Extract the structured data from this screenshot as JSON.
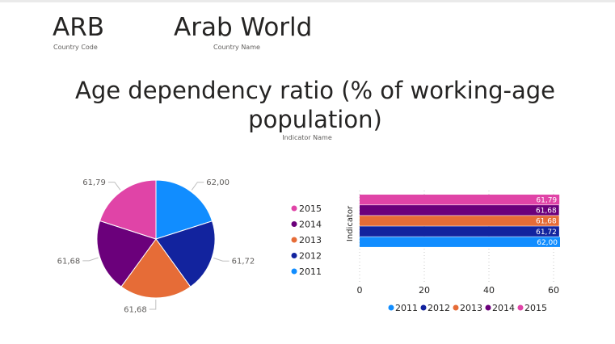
{
  "cards": {
    "country_code": {
      "value": "ARB",
      "label": "Country Code"
    },
    "country_name": {
      "value": "Arab World",
      "label": "Country Name"
    }
  },
  "indicator": {
    "value": "Age dependency ratio (% of working-age population)",
    "label": "Indicator Name"
  },
  "colors": {
    "2011": "#118DFF",
    "2012": "#12239E",
    "2013": "#E66C37",
    "2014": "#6B007B",
    "2015": "#E044A7"
  },
  "chart_data": [
    {
      "type": "pie",
      "categories": [
        "2011",
        "2012",
        "2013",
        "2014",
        "2015"
      ],
      "values": [
        62.0,
        61.72,
        61.68,
        61.68,
        61.79
      ],
      "data_labels": [
        "62,00",
        "61,72",
        "61,68",
        "61,68",
        "61,79"
      ],
      "legend": {
        "position": "right",
        "entries": [
          "2015",
          "2014",
          "2013",
          "2012",
          "2011"
        ]
      }
    },
    {
      "type": "bar",
      "orientation": "horizontal",
      "ylabel": "Indicator",
      "xlim": [
        0,
        65
      ],
      "xticks": [
        "0",
        "20",
        "40",
        "60"
      ],
      "xtick_values": [
        0,
        20,
        40,
        60
      ],
      "series": [
        {
          "name": "2011",
          "values": [
            62.0
          ],
          "label": "62,00"
        },
        {
          "name": "2012",
          "values": [
            61.72
          ],
          "label": "61,72"
        },
        {
          "name": "2013",
          "values": [
            61.68
          ],
          "label": "61,68"
        },
        {
          "name": "2014",
          "values": [
            61.68
          ],
          "label": "61,68"
        },
        {
          "name": "2015",
          "values": [
            61.79
          ],
          "label": "61,79"
        }
      ],
      "bar_order_top_to_bottom": [
        "2015",
        "2014",
        "2013",
        "2012",
        "2011"
      ],
      "legend": {
        "position": "bottom",
        "entries": [
          "2011",
          "2012",
          "2013",
          "2014",
          "2015"
        ]
      }
    }
  ]
}
